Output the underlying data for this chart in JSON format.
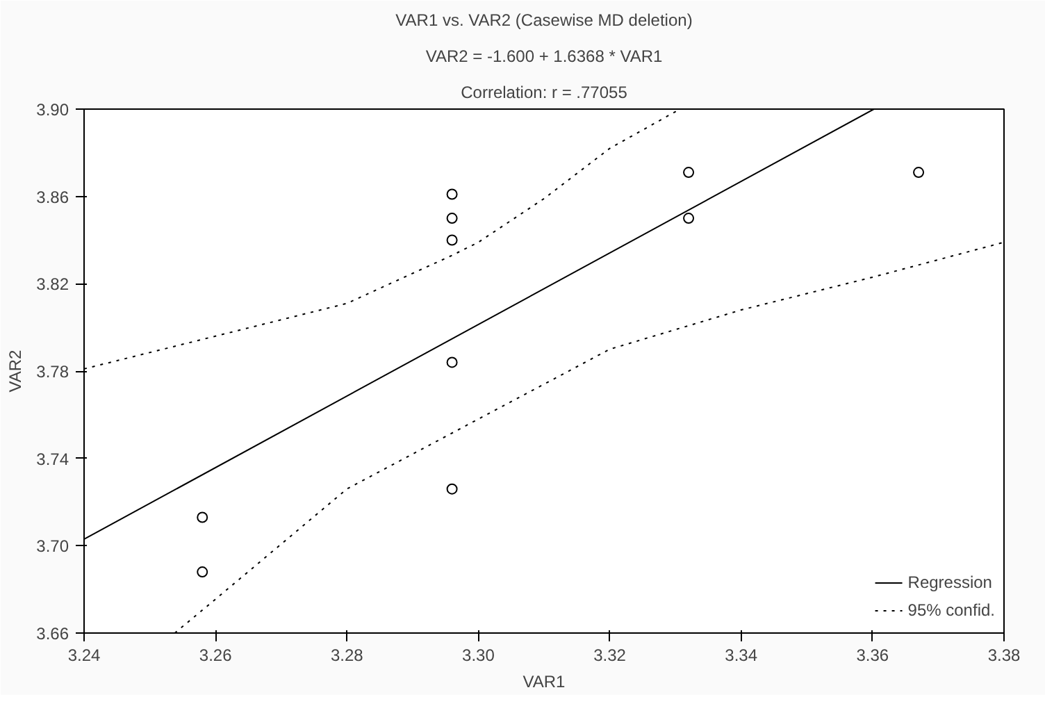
{
  "chart_data": {
    "type": "scatter",
    "title": "VAR1 vs. VAR2 (Casewise MD deletion)",
    "subtitle": "VAR2 = -1.600 + 1.6368 * VAR1",
    "annotations": [
      "Correlation: r = .77055"
    ],
    "xlabel": "VAR1",
    "ylabel": "VAR2",
    "xlim": [
      3.24,
      3.38
    ],
    "xticks": [
      3.24,
      3.26,
      3.28,
      {
        "value": 3.3,
        "label": "3.30"
      },
      3.32,
      3.34,
      3.36,
      3.38
    ],
    "ylim": [
      3.66,
      3.9
    ],
    "yticks": [
      3.66,
      {
        "value": 3.7,
        "label": "3.70"
      },
      3.74,
      3.78,
      3.82,
      3.86,
      {
        "value": 3.9,
        "label": "3.90"
      }
    ],
    "grid": false,
    "legend": "bottom right",
    "series": [
      {
        "type": "scatter",
        "marker": "circle",
        "color": "#000000",
        "x": [
          3.258,
          3.258,
          3.296,
          3.296,
          3.296,
          3.296,
          3.296,
          3.332,
          3.332,
          3.367
        ],
        "values": [
          3.713,
          3.688,
          3.861,
          3.85,
          3.84,
          3.784,
          3.726,
          3.871,
          3.85,
          3.871
        ]
      },
      {
        "type": "line",
        "name": "Regression",
        "line_style": "solid",
        "color": "#000000",
        "x": [
          3.24,
          3.3602
        ],
        "values": [
          3.703,
          3.9
        ]
      },
      {
        "type": "line",
        "name": "95% confid.",
        "line_style": "dotted",
        "color": "#000000",
        "x": [
          3.24,
          3.26,
          3.28,
          3.296,
          3.3,
          3.31,
          3.32,
          3.3307
        ],
        "values": [
          3.781,
          3.796,
          3.811,
          3.833,
          3.839,
          3.859,
          3.882,
          3.9
        ]
      },
      {
        "type": "line",
        "line_style": "dotted",
        "color": "#000000",
        "x": [
          3.2538,
          3.26,
          3.28,
          3.3,
          3.32,
          3.34,
          3.36,
          3.38
        ],
        "values": [
          3.66,
          3.6755,
          3.726,
          3.758,
          3.79,
          3.808,
          3.823,
          3.839
        ]
      }
    ]
  }
}
